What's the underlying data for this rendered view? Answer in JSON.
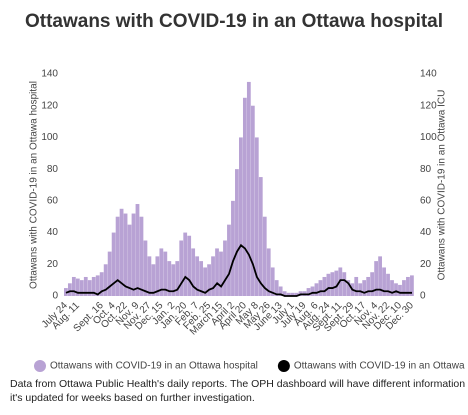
{
  "chart_data": {
    "type": "bar",
    "title": "Ottawans with COVID-19 in an Ottawa hospital",
    "y_label": "Ottawans with COVID-19 in an Ottawa hospital",
    "y2_label": "Ottawans with COVID-19 in an Ottawa ICU",
    "source_lines": [
      "Data from Ottawa Public Health's daily reports. The OPH dashboard will have different information as",
      "it's updated for weeks based on further investigation."
    ],
    "categories": [
      "July 24",
      null,
      null,
      "Aug. 11",
      null,
      null,
      null,
      null,
      null,
      "Sept. 16",
      null,
      null,
      "Oct. 4",
      null,
      null,
      "Oct. 22",
      null,
      null,
      "Nov. 9",
      null,
      null,
      "Nov. 27",
      null,
      null,
      "Dec. 15",
      null,
      null,
      "Jan. 2",
      null,
      null,
      "Jan. 20",
      null,
      null,
      "Feb. 7",
      null,
      null,
      "Feb. 25",
      null,
      null,
      "March 15",
      null,
      null,
      "April 2",
      null,
      null,
      "April 20",
      null,
      null,
      "May 8",
      null,
      null,
      "May 26",
      null,
      null,
      "June 13",
      null,
      null,
      "July 1",
      null,
      null,
      "July 19",
      null,
      null,
      "Aug. 6",
      null,
      null,
      "Aug. 24",
      null,
      null,
      "Sept. 11",
      null,
      null,
      "Sept. 29",
      null,
      null,
      "Oct. 17",
      null,
      null,
      "Nov. 4",
      null,
      null,
      "Nov. 22",
      null,
      null,
      "Dec. 10",
      null,
      null,
      "Dec. 30"
    ],
    "series": [
      {
        "name": "Ottawans with COVID-19 in an Ottawa hospital",
        "type": "bar",
        "color": "#b8a2d4",
        "values": [
          5,
          8,
          12,
          11,
          10,
          12,
          10,
          12,
          13,
          15,
          20,
          28,
          40,
          50,
          55,
          52,
          45,
          52,
          58,
          50,
          35,
          25,
          20,
          25,
          30,
          28,
          22,
          20,
          22,
          35,
          40,
          38,
          30,
          25,
          22,
          18,
          20,
          25,
          30,
          28,
          35,
          45,
          60,
          80,
          100,
          125,
          135,
          120,
          100,
          75,
          50,
          30,
          18,
          10,
          6,
          3,
          2,
          2,
          2,
          3,
          3,
          5,
          6,
          8,
          10,
          12,
          14,
          15,
          16,
          18,
          15,
          10,
          8,
          12,
          8,
          10,
          12,
          15,
          22,
          25,
          18,
          14,
          10,
          8,
          7,
          10,
          12,
          13
        ]
      },
      {
        "name": "Ottawans with COVID-19 in an Ottawa ICU",
        "type": "line",
        "axis": "y2",
        "color": "#000000",
        "values": [
          2,
          3,
          3,
          2,
          2,
          2,
          2,
          2,
          1,
          3,
          4,
          6,
          8,
          10,
          8,
          6,
          5,
          4,
          5,
          4,
          3,
          2,
          2,
          3,
          4,
          4,
          3,
          3,
          4,
          8,
          12,
          10,
          6,
          4,
          3,
          2,
          4,
          5,
          8,
          6,
          10,
          14,
          22,
          28,
          32,
          30,
          26,
          20,
          12,
          8,
          5,
          3,
          2,
          1,
          1,
          0,
          0,
          0,
          0,
          1,
          1,
          1,
          2,
          2,
          3,
          3,
          5,
          5,
          6,
          10,
          10,
          8,
          4,
          3,
          3,
          2,
          3,
          3,
          4,
          4,
          3,
          3,
          2,
          3,
          2,
          2,
          2,
          2
        ]
      }
    ],
    "ylim": [
      0,
      140
    ],
    "yticks": [
      0,
      20,
      40,
      60,
      80,
      100,
      120,
      140
    ],
    "y2lim": [
      0,
      140
    ],
    "y2ticks": [
      0,
      20,
      40,
      60,
      80,
      100,
      120,
      140
    ],
    "legend": "bottom"
  }
}
